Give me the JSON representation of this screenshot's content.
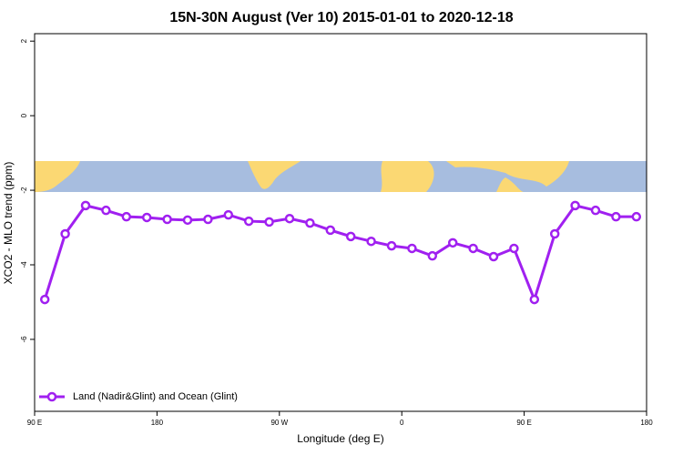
{
  "chart_data": {
    "type": "line",
    "title": "15N-30N August (Ver 10)   2015-01-01 to 2020-12-18",
    "xlabel": "Longitude (deg E)",
    "ylabel": "XCO2 - MLO trend (ppm)",
    "x": [
      97.5,
      112.5,
      127.5,
      142.5,
      157.5,
      172.5,
      187.5,
      202.5,
      217.5,
      232.5,
      247.5,
      262.5,
      277.5,
      292.5,
      307.5,
      322.5,
      337.5,
      352.5,
      367.5,
      382.5,
      397.5,
      412.5,
      427.5,
      442.5,
      457.5,
      472.5,
      487.5,
      502.5,
      517.5,
      532.5
    ],
    "series": [
      {
        "name": "Land (Nadir&Glint) and Ocean (Glint)",
        "color": "#a020f0",
        "values": [
          -4.93,
          -3.17,
          -2.41,
          -2.54,
          -2.71,
          -2.73,
          -2.78,
          -2.8,
          -2.78,
          -2.66,
          -2.83,
          -2.85,
          -2.76,
          -2.88,
          -3.07,
          -3.24,
          -3.37,
          -3.49,
          -3.56,
          -3.76,
          -3.41,
          -3.56,
          -3.78,
          -3.56,
          -4.93,
          -3.17,
          -2.41,
          -2.54,
          -2.71,
          -2.71
        ]
      }
    ],
    "xlim": [
      90,
      540
    ],
    "xticks": [
      {
        "value": 90,
        "label": "90 E"
      },
      180,
      {
        "value": 270,
        "label": "90 W"
      },
      {
        "value": 360,
        "label": "0"
      },
      {
        "value": 450,
        "label": "90 E"
      },
      {
        "value": 540,
        "label": "180"
      }
    ],
    "ylim": [
      -7.93,
      2.2
    ],
    "yticks": [
      -6,
      -4,
      -2,
      0,
      2
    ],
    "legend": "bottom-left"
  }
}
